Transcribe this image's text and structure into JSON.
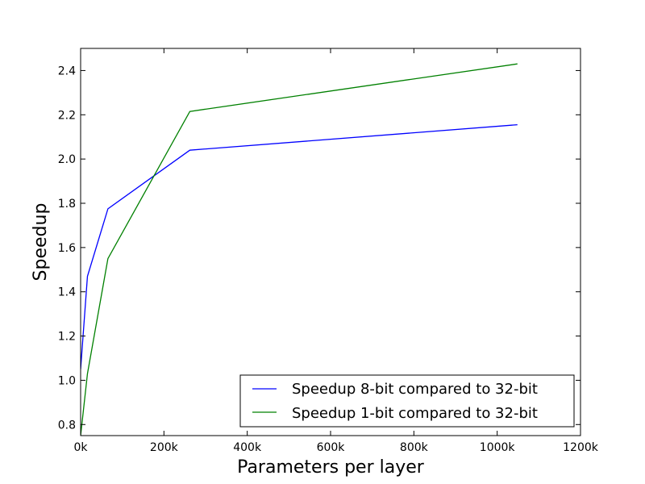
{
  "chart_data": {
    "type": "line",
    "title": "",
    "xlabel": "Parameters per layer",
    "ylabel": "Speedup",
    "xlim": [
      0,
      1200000
    ],
    "ylim": [
      0.75,
      2.5
    ],
    "xticks": [
      0,
      200000,
      400000,
      600000,
      800000,
      1000000,
      1200000
    ],
    "xtick_labels": [
      "0k",
      "200k",
      "400k",
      "600k",
      "800k",
      "1000k",
      "1200k"
    ],
    "yticks": [
      0.8,
      1.0,
      1.2,
      1.4,
      1.6,
      1.8,
      2.0,
      2.2,
      2.4
    ],
    "ytick_labels": [
      "0.8",
      "1.0",
      "1.2",
      "1.4",
      "1.6",
      "1.8",
      "2.0",
      "2.2",
      "2.4"
    ],
    "grid": false,
    "legend_position": "lower-right",
    "series": [
      {
        "name": "Speedup 8-bit compared to 32-bit",
        "color": "#0000ff",
        "x": [
          0,
          16384,
          65536,
          262144,
          1048576
        ],
        "y": [
          1.05,
          1.47,
          1.775,
          2.04,
          2.155
        ]
      },
      {
        "name": "Speedup 1-bit compared to 32-bit",
        "color": "#008000",
        "x": [
          0,
          16384,
          65536,
          262144,
          1048576
        ],
        "y": [
          0.75,
          1.03,
          1.55,
          2.215,
          2.43
        ]
      }
    ]
  }
}
